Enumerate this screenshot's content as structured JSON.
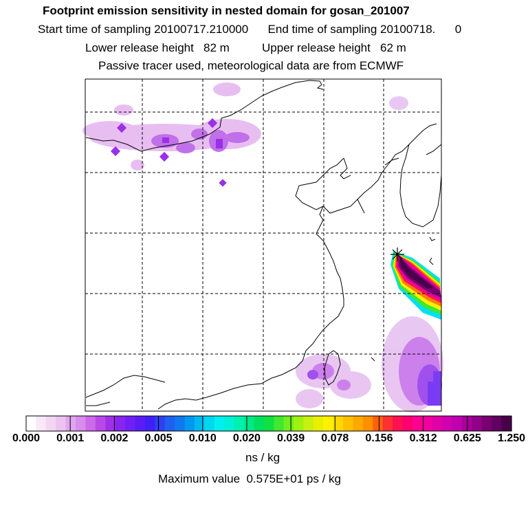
{
  "header": {
    "title": "Footprint emission sensitivity in nested domain for gosan_201007",
    "line1": "Start time of sampling 20100717.210000      End time of sampling 20100718.      0",
    "line2": "Lower release height   82 m          Upper release height   62 m",
    "line3": "Passive tracer used, meteorological data are from ECMWF"
  },
  "colorbar": {
    "labels": [
      "0.000",
      "0.001",
      "0.002",
      "0.005",
      "0.010",
      "0.020",
      "0.039",
      "0.078",
      "0.156",
      "0.312",
      "0.625",
      "1.250"
    ],
    "colors": [
      "#ffffff",
      "#f8e8f8",
      "#f2d6f2",
      "#ecc2f0",
      "#e0a6ee",
      "#d88cec",
      "#cc6aea",
      "#b848e8",
      "#a030e8",
      "#8824f0",
      "#7020f4",
      "#5a1cf6",
      "#4020f4",
      "#3040f0",
      "#2060f0",
      "#1078f0",
      "#0098f0",
      "#00b8f0",
      "#00d8f0",
      "#00f0f0",
      "#00f0d8",
      "#00f0b0",
      "#00e888",
      "#00e060",
      "#10e040",
      "#40e830",
      "#70ee20",
      "#a0f010",
      "#c8f010",
      "#e8f000",
      "#fff000",
      "#ffd800",
      "#ffc000",
      "#ffa800",
      "#ff9000",
      "#ff6010",
      "#ff3030",
      "#ff1050",
      "#ff0070",
      "#ff0090",
      "#f000a0",
      "#e000a8",
      "#d000b0",
      "#c000b0",
      "#a80098",
      "#900088",
      "#780070",
      "#600060",
      "#480048"
    ],
    "units": "ns / kg",
    "max_text": "Maximum value  0.575E+01 ps / kg"
  }
}
